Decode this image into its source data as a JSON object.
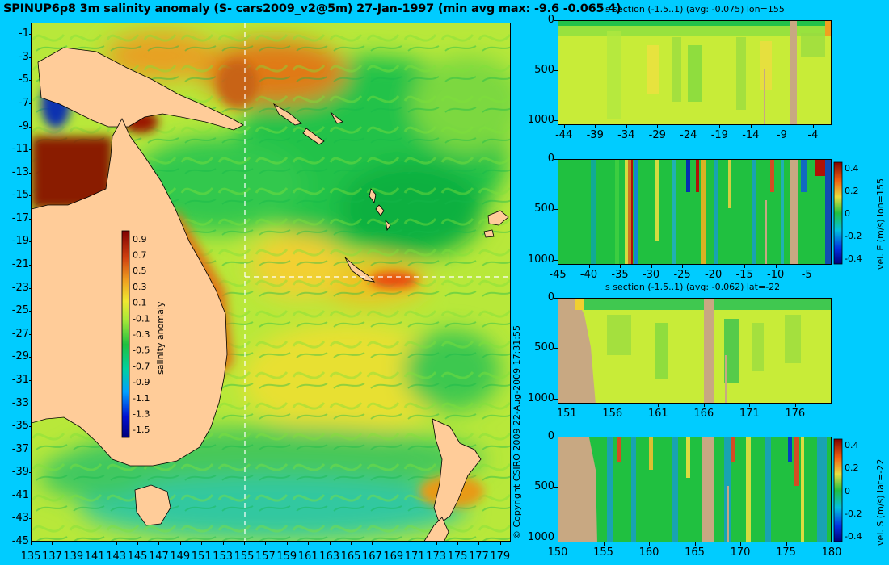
{
  "title": "SPINUP6p8 3m salinity anomaly (S- cars2009_v2@5m) 27-Jan-1997 (min avg max: -9.6 -0.065 4)",
  "copyright": "© Copyright CSIRO 2009   22-Aug-2009 17:31:55",
  "chart_data": [
    {
      "type": "heatmap",
      "name": "map",
      "x_ticks": [
        "135",
        "137",
        "139",
        "141",
        "143",
        "145",
        "147",
        "149",
        "151",
        "153",
        "155",
        "157",
        "159",
        "161",
        "163",
        "165",
        "167",
        "169",
        "171",
        "173",
        "175",
        "177",
        "179"
      ],
      "y_ticks": [
        "-1",
        "-3",
        "-5",
        "-7",
        "-9",
        "-11",
        "-13",
        "-15",
        "-17",
        "-19",
        "-21",
        "-23",
        "-25",
        "-27",
        "-29",
        "-31",
        "-33",
        "-35",
        "-37",
        "-39",
        "-41",
        "-43",
        "-45"
      ],
      "xlim": [
        135,
        180
      ],
      "ylim": [
        -45,
        0
      ],
      "section_lines": {
        "lon": 155,
        "lat": -22
      },
      "colorbar": {
        "label": "salinity anomaly",
        "ticks": [
          "0.9",
          "0.7",
          "0.5",
          "0.3",
          "0.1",
          "-0.1",
          "-0.3",
          "-0.5",
          "-0.7",
          "-0.9",
          "-1.1",
          "-1.3",
          "-1.5"
        ],
        "range": [
          -1.6,
          1.0
        ]
      }
    },
    {
      "type": "heatmap",
      "name": "s-section-lon",
      "title": "s section (-1.5..1) (avg: -0.075) lon=155",
      "x_ticks": [
        "-44",
        "-39",
        "-34",
        "-29",
        "-24",
        "-19",
        "-14",
        "-9",
        "-4"
      ],
      "y_ticks": [
        "0",
        "500",
        "1000"
      ],
      "xlim": [
        -45,
        -1
      ],
      "ylim": [
        1050,
        0
      ]
    },
    {
      "type": "heatmap",
      "name": "vel-e-section",
      "x_ticks": [
        "-45",
        "-40",
        "-35",
        "-30",
        "-25",
        "-20",
        "-15",
        "-10",
        "-5"
      ],
      "y_ticks": [
        "0",
        "500",
        "1000"
      ],
      "xlim": [
        -45,
        -1
      ],
      "ylim": [
        1050,
        0
      ],
      "colorbar": {
        "label": "vel. E (m/s) lon=155",
        "ticks": [
          "0.4",
          "0.2",
          "0",
          "-0.2",
          "-0.4"
        ],
        "range": [
          -0.45,
          0.45
        ]
      }
    },
    {
      "type": "heatmap",
      "name": "s-section-lat",
      "title": "s section (-1.5..1) (avg: -0.062) lat=-22",
      "x_ticks": [
        "151",
        "156",
        "161",
        "166",
        "171",
        "176"
      ],
      "y_ticks": [
        "0",
        "500",
        "1000"
      ],
      "xlim": [
        150,
        180
      ],
      "ylim": [
        1050,
        0
      ]
    },
    {
      "type": "heatmap",
      "name": "vel-s-section",
      "x_ticks": [
        "150",
        "155",
        "160",
        "165",
        "170",
        "175",
        "180"
      ],
      "y_ticks": [
        "0",
        "500",
        "1000"
      ],
      "xlim": [
        150,
        180
      ],
      "ylim": [
        1050,
        0
      ],
      "colorbar": {
        "label": "vel. S (m/s) lat=-22",
        "ticks": [
          "0.4",
          "0.2",
          "0",
          "-0.2",
          "-0.4"
        ],
        "range": [
          -0.45,
          0.45
        ]
      }
    }
  ]
}
